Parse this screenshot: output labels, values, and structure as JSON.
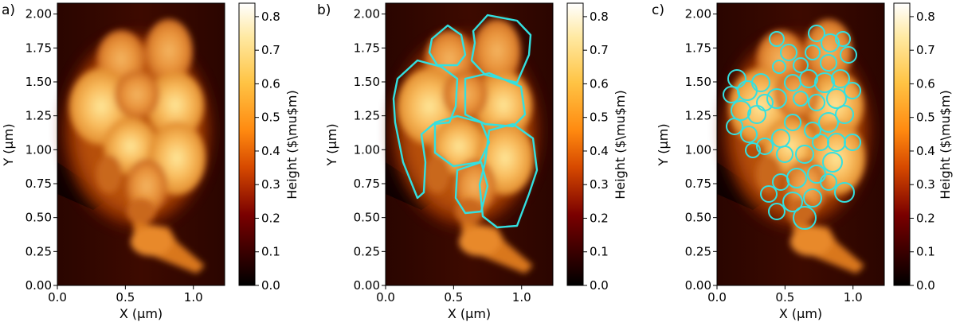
{
  "chart_data": [
    {
      "type": "heatmap",
      "panel_label": "a)",
      "xlabel": "X (µm)",
      "ylabel": "Y (µm)",
      "colorbar_label": "Height ($\\mu$m)",
      "xlim": [
        0,
        1.23
      ],
      "ylim": [
        0,
        2.08
      ],
      "x_ticks": [
        "0.0",
        "0.5",
        "1.0"
      ],
      "y_ticks": [
        "0.00",
        "0.25",
        "0.50",
        "0.75",
        "1.00",
        "1.25",
        "1.50",
        "1.75",
        "2.00"
      ],
      "colorbar_range": [
        0,
        0.84
      ],
      "colorbar_ticks": [
        "0.0",
        "0.1",
        "0.2",
        "0.3",
        "0.4",
        "0.5",
        "0.6",
        "0.7",
        "0.8"
      ],
      "colormap": "afmhot",
      "overlay": "none"
    },
    {
      "type": "heatmap",
      "panel_label": "b)",
      "xlabel": "X (µm)",
      "ylabel": "Y (µm)",
      "colorbar_label": "Height ($\\mu$m)",
      "xlim": [
        0,
        1.23
      ],
      "ylim": [
        0,
        2.08
      ],
      "x_ticks": [
        "0.0",
        "0.5",
        "1.0"
      ],
      "y_ticks": [
        "0.00",
        "0.25",
        "0.50",
        "0.75",
        "1.00",
        "1.25",
        "1.50",
        "1.75",
        "2.00"
      ],
      "colorbar_range": [
        0,
        0.84
      ],
      "colorbar_ticks": [
        "0.0",
        "0.1",
        "0.2",
        "0.3",
        "0.4",
        "0.5",
        "0.6",
        "0.7",
        "0.8"
      ],
      "colormap": "afmhot",
      "overlay": "large-grain-outlines",
      "overlay_color": "#33e0e0"
    },
    {
      "type": "heatmap",
      "panel_label": "c)",
      "xlabel": "X (µm)",
      "ylabel": "Y (µm)",
      "colorbar_label": "Height ($\\mu$m)",
      "xlim": [
        0,
        1.23
      ],
      "ylim": [
        0,
        2.08
      ],
      "x_ticks": [
        "0.0",
        "0.5",
        "1.0"
      ],
      "y_ticks": [
        "0.00",
        "0.25",
        "0.50",
        "0.75",
        "1.00",
        "1.25",
        "1.50",
        "1.75",
        "2.00"
      ],
      "colorbar_range": [
        0,
        0.84
      ],
      "colorbar_ticks": [
        "0.0",
        "0.1",
        "0.2",
        "0.3",
        "0.4",
        "0.5",
        "0.6",
        "0.7",
        "0.8"
      ],
      "colormap": "afmhot",
      "overlay": "small-grain-outlines",
      "overlay_color": "#33e0e0"
    }
  ],
  "colors": {
    "overlay": "#33e0e0",
    "background": "#ffffff"
  }
}
